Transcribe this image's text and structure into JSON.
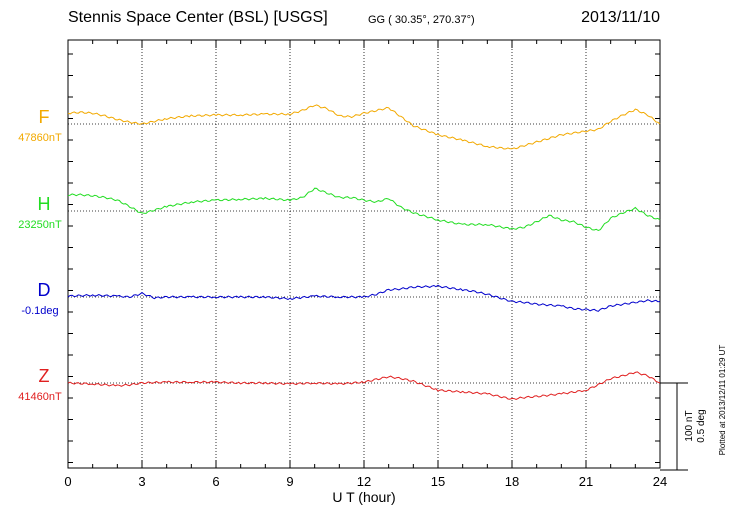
{
  "header": {
    "title": "Stennis Space Center (BSL)  [USGS]",
    "coords": "GG ( 30.35°, 270.37°)",
    "date": "2013/11/10"
  },
  "footer_note": "Plotted at 2013/12/11 01:29 UT",
  "scale_note": [
    "100 nT",
    "0.5 deg"
  ],
  "chart_data": {
    "type": "line",
    "xlabel": "U T (hour)",
    "x_ticks": [
      "0",
      "3",
      "6",
      "9",
      "12",
      "15",
      "18",
      "21",
      "24"
    ],
    "xlim": [
      0,
      24
    ],
    "grid": true,
    "scale_nT_per_division": 100,
    "series": [
      {
        "name": "F",
        "baseline_label": "47860nT",
        "color": "#f2a900",
        "x": [
          0,
          0.5,
          1,
          1.5,
          2,
          2.5,
          3,
          4,
          5,
          6,
          7,
          8,
          9,
          9.5,
          10,
          10.5,
          11,
          11.5,
          12,
          12.5,
          13,
          13.5,
          14,
          15,
          16,
          17,
          18,
          18.5,
          19,
          19.5,
          20,
          20.5,
          21,
          21.5,
          22,
          22.5,
          23,
          23.5,
          24
        ],
        "values": [
          12,
          13,
          12,
          9,
          5,
          2,
          0,
          6,
          9,
          10,
          10,
          11,
          11,
          15,
          21,
          17,
          9,
          8,
          12,
          15,
          18,
          8,
          -2,
          -12,
          -18,
          -25,
          -28,
          -24,
          -20,
          -16,
          -12,
          -10,
          -8,
          -6,
          3,
          10,
          16,
          10,
          0
        ]
      },
      {
        "name": "H",
        "baseline_label": "23250nT",
        "color": "#22dd22",
        "x": [
          0,
          0.5,
          1,
          1.5,
          2,
          2.5,
          3,
          4,
          5,
          6,
          7,
          8,
          9,
          9.5,
          10,
          10.5,
          11,
          11.5,
          12,
          12.5,
          13,
          13.5,
          14,
          15,
          16,
          17,
          18,
          18.5,
          19,
          19.5,
          20,
          20.5,
          21,
          21.5,
          22,
          22.5,
          23,
          23.5,
          24
        ],
        "values": [
          18,
          18,
          17,
          15,
          12,
          5,
          -3,
          5,
          10,
          12,
          13,
          14,
          12,
          15,
          25,
          20,
          15,
          15,
          12,
          10,
          14,
          4,
          -2,
          -10,
          -15,
          -15,
          -20,
          -18,
          -12,
          -5,
          -10,
          -12,
          -18,
          -22,
          -8,
          -2,
          3,
          -5,
          -10
        ]
      },
      {
        "name": "D",
        "baseline_label": "-0.1deg",
        "color": "#0000cc",
        "x": [
          0,
          1,
          2,
          2.5,
          3,
          3.5,
          4,
          5,
          6,
          7,
          8,
          9,
          10,
          11,
          12,
          12.5,
          13,
          13.5,
          14,
          15,
          16,
          16.5,
          17,
          17.5,
          18,
          18.5,
          19,
          20,
          20.5,
          21,
          21.5,
          22,
          22.5,
          23,
          23.5,
          24
        ],
        "values": [
          1,
          2,
          1,
          0,
          4,
          -1,
          0,
          0,
          0,
          0,
          0,
          -2,
          1,
          0,
          0,
          3,
          8,
          9,
          11,
          12,
          8,
          6,
          3,
          -1,
          -5,
          -6,
          -8,
          -10,
          -13,
          -14,
          -15,
          -10,
          -8,
          -6,
          -4,
          -5
        ]
      },
      {
        "name": "Z",
        "baseline_label": "41460nT",
        "color": "#e02020",
        "x": [
          0,
          1,
          2,
          2.5,
          3,
          4,
          5,
          6,
          7,
          8,
          9,
          10,
          11,
          12,
          12.5,
          13,
          13.5,
          14,
          15,
          16,
          17,
          17.5,
          18,
          18.5,
          19,
          20,
          21,
          21.5,
          22,
          22.5,
          23,
          23.5,
          24
        ],
        "values": [
          0,
          -1,
          -3,
          -2,
          0,
          1,
          1,
          1,
          0,
          0,
          -1,
          0,
          -1,
          1,
          4,
          7,
          5,
          2,
          -8,
          -10,
          -12,
          -15,
          -18,
          -16,
          -15,
          -12,
          -8,
          -2,
          5,
          8,
          12,
          8,
          0
        ]
      }
    ]
  }
}
